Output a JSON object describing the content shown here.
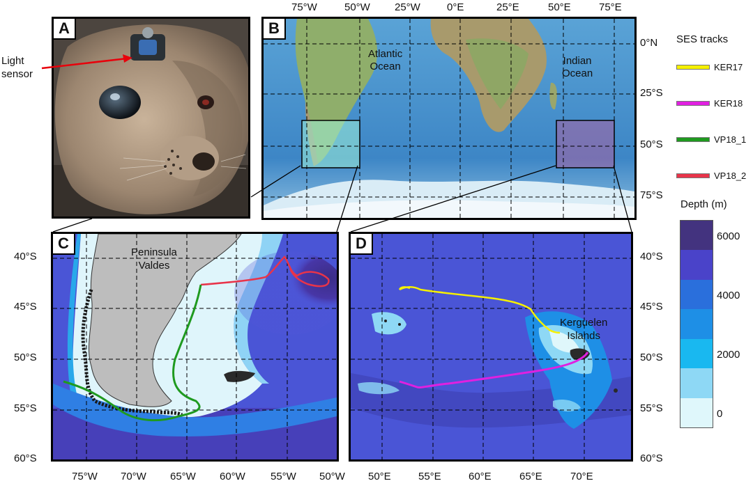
{
  "panel_A": {
    "letter": "A",
    "annotation": "Light sensor"
  },
  "panel_B": {
    "letter": "B",
    "lon_ticks": [
      "75°W",
      "50°W",
      "25°W",
      "0°E",
      "25°E",
      "50°E",
      "75°E"
    ],
    "lat_ticks": [
      "0°N",
      "25°S",
      "50°S",
      "75°S"
    ],
    "ocean_labels": [
      {
        "text": "Atlantic Ocean",
        "lines": [
          "Atlantic",
          "Ocean"
        ]
      },
      {
        "text": "Indian Ocean",
        "lines": [
          "Indian",
          "Ocean"
        ]
      }
    ]
  },
  "panel_C": {
    "letter": "C",
    "lon_ticks": [
      "75°W",
      "70°W",
      "65°W",
      "60°W",
      "55°W",
      "50°W"
    ],
    "lat_ticks": [
      "40°S",
      "45°S",
      "50°S",
      "55°S",
      "60°S"
    ],
    "place_label": {
      "lines": [
        "Peninsula",
        "Valdes"
      ]
    }
  },
  "panel_D": {
    "letter": "D",
    "lon_ticks": [
      "50°E",
      "55°E",
      "60°E",
      "65°E",
      "70°E"
    ],
    "lat_ticks": [
      "40°S",
      "45°S",
      "50°S",
      "55°S",
      "60°S"
    ],
    "place_label": {
      "lines": [
        "Kerguelen",
        "Islands"
      ]
    }
  },
  "legend": {
    "title": "SES tracks",
    "items": [
      {
        "name": "KER17",
        "color": "#f5f000"
      },
      {
        "name": "KER18",
        "color": "#e020e0"
      },
      {
        "name": "VP18_1",
        "color": "#1f9a1f"
      },
      {
        "name": "VP18_2",
        "color": "#e8344a"
      }
    ]
  },
  "depth_scale": {
    "title": "Depth (m)",
    "tick_labels": [
      "6000",
      "4000",
      "2000",
      "0"
    ],
    "colors": [
      "#43337f",
      "#4a43c9",
      "#2a6fdc",
      "#1e8fe6",
      "#19b8f0",
      "#8ed8f5",
      "#dff7fb"
    ]
  }
}
